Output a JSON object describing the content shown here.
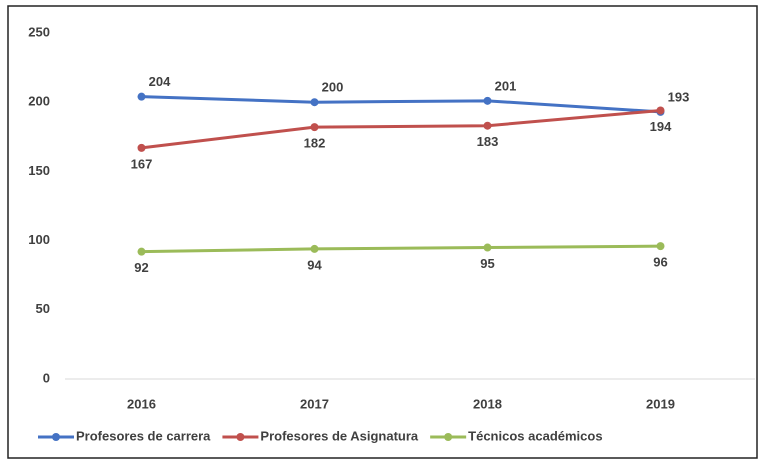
{
  "chart_data": {
    "type": "line",
    "categories": [
      "2016",
      "2017",
      "2018",
      "2019"
    ],
    "series": [
      {
        "name": "Profesores de carrera",
        "color": "#4472c4",
        "values": [
          204,
          200,
          201,
          193
        ]
      },
      {
        "name": "Profesores de Asignatura",
        "color": "#c0504d",
        "values": [
          167,
          182,
          183,
          194
        ]
      },
      {
        "name": "Técnicos académicos",
        "color": "#9bbb59",
        "values": [
          92,
          94,
          95,
          96
        ]
      }
    ],
    "ylim": [
      0,
      250
    ],
    "yticks": [
      0,
      50,
      100,
      150,
      200,
      250
    ],
    "grid": false,
    "legend": "bottom"
  }
}
